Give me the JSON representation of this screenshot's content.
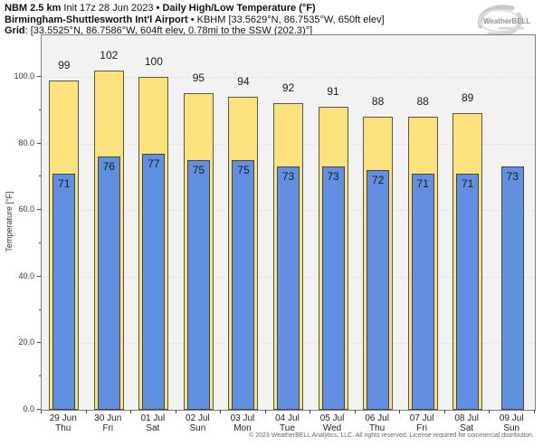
{
  "header": {
    "line1": {
      "bold1": "NBM 2.5 km",
      "regular1": " Init 17z 28 Jun 2023 ",
      "bold2": "• Daily High/Low Temperature (°F)"
    },
    "line2": {
      "bold": "Birmingham-Shuttlesworth Int'l Airport",
      "regular": " • KBHM [33.5629°N, 86.7535°W, 650ft elev]"
    },
    "line3": {
      "bold": "Grid",
      "regular": ": [33.5525°N, 86.7586°W, 604ft elev, 0.78mi to the SSW (202.3)°]"
    }
  },
  "logo": {
    "brand": "WeatherBELL"
  },
  "footer": {
    "copyright": "© 2023 WeatherBELL Analytics, LLC. All rights reserved. License required for commercial distribution."
  },
  "chart_data": {
    "type": "bar",
    "title": "Daily High/Low Temperature (°F)",
    "ylabel": "Temperature [°F]",
    "ylim": [
      0,
      112.5
    ],
    "y_major_ticks": [
      0,
      20,
      40,
      60,
      80,
      100
    ],
    "y_minor_ticks": [
      10,
      30,
      50,
      70,
      90
    ],
    "grid": "horizontal dashed at major ticks",
    "legend": "none",
    "categories": [
      {
        "date": "29 Jun",
        "day": "Thu"
      },
      {
        "date": "30 Jun",
        "day": "Fri"
      },
      {
        "date": "01 Jul",
        "day": "Sat"
      },
      {
        "date": "02 Jul",
        "day": "Sun"
      },
      {
        "date": "03 Jul",
        "day": "Mon"
      },
      {
        "date": "04 Jul",
        "day": "Tue"
      },
      {
        "date": "05 Jul",
        "day": "Wed"
      },
      {
        "date": "06 Jul",
        "day": "Thu"
      },
      {
        "date": "07 Jul",
        "day": "Fri"
      },
      {
        "date": "08 Jul",
        "day": "Sat"
      },
      {
        "date": "09 Jul",
        "day": "Sun"
      }
    ],
    "series": [
      {
        "name": "Daily High",
        "color": "#fce27d",
        "values": [
          99,
          102,
          100,
          95,
          94,
          92,
          91,
          88,
          88,
          89,
          null
        ]
      },
      {
        "name": "Daily Low",
        "color": "#6190e0",
        "values": [
          71,
          76,
          77,
          75,
          75,
          73,
          73,
          72,
          71,
          71,
          73
        ]
      }
    ],
    "bar_value_labels": "high above bar, low inside top of bar"
  },
  "colors": {
    "plot_background": "#f2f2f2",
    "frame_border": "#7f7f7f",
    "gridline": "#e0e0e0",
    "high_bar_fill": "#fce27d",
    "low_bar_fill": "#6190e0",
    "bar_border": "#4c4c44",
    "text": "#1a1a1a",
    "footer_text": "#666666"
  }
}
